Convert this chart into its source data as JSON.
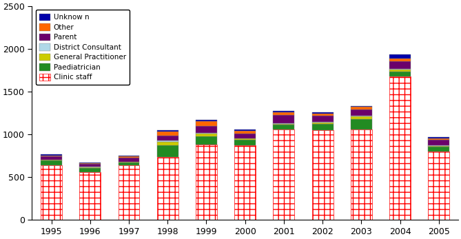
{
  "years": [
    1995,
    1996,
    1997,
    1998,
    1999,
    2000,
    2001,
    2002,
    2003,
    2004,
    2005
  ],
  "clinic_staff": [
    640,
    560,
    640,
    740,
    880,
    870,
    1060,
    1050,
    1060,
    1680,
    800
  ],
  "paediatrician": [
    55,
    50,
    30,
    130,
    100,
    70,
    55,
    75,
    120,
    55,
    60
  ],
  "general_practitioner": [
    8,
    8,
    8,
    45,
    30,
    12,
    12,
    12,
    30,
    25,
    8
  ],
  "district_consultant": [
    5,
    5,
    5,
    18,
    12,
    5,
    8,
    8,
    8,
    8,
    5
  ],
  "parent": [
    35,
    30,
    45,
    55,
    75,
    55,
    95,
    75,
    75,
    90,
    65
  ],
  "other": [
    12,
    12,
    18,
    45,
    55,
    28,
    28,
    28,
    28,
    28,
    18
  ],
  "unknown": [
    10,
    10,
    10,
    15,
    20,
    15,
    15,
    15,
    15,
    55,
    15
  ],
  "colors": {
    "clinic_staff_face": "#FFFFFF",
    "clinic_staff_edge": "#FF0000",
    "paediatrician": "#228B22",
    "general_practitioner": "#CCCC00",
    "district_consultant": "#B0D8E8",
    "parent": "#6B006B",
    "other": "#FF6600",
    "unknown": "#0000AA"
  },
  "legend_labels": [
    "Unknow n",
    "Other",
    "Parent",
    "District Consultant",
    "General Practitioner",
    "Paediatrician",
    "Clinic staff"
  ],
  "ylim": [
    0,
    2500
  ],
  "yticks": [
    0,
    500,
    1000,
    1500,
    2000,
    2500
  ],
  "figsize": [
    6.69,
    3.47
  ],
  "dpi": 100
}
